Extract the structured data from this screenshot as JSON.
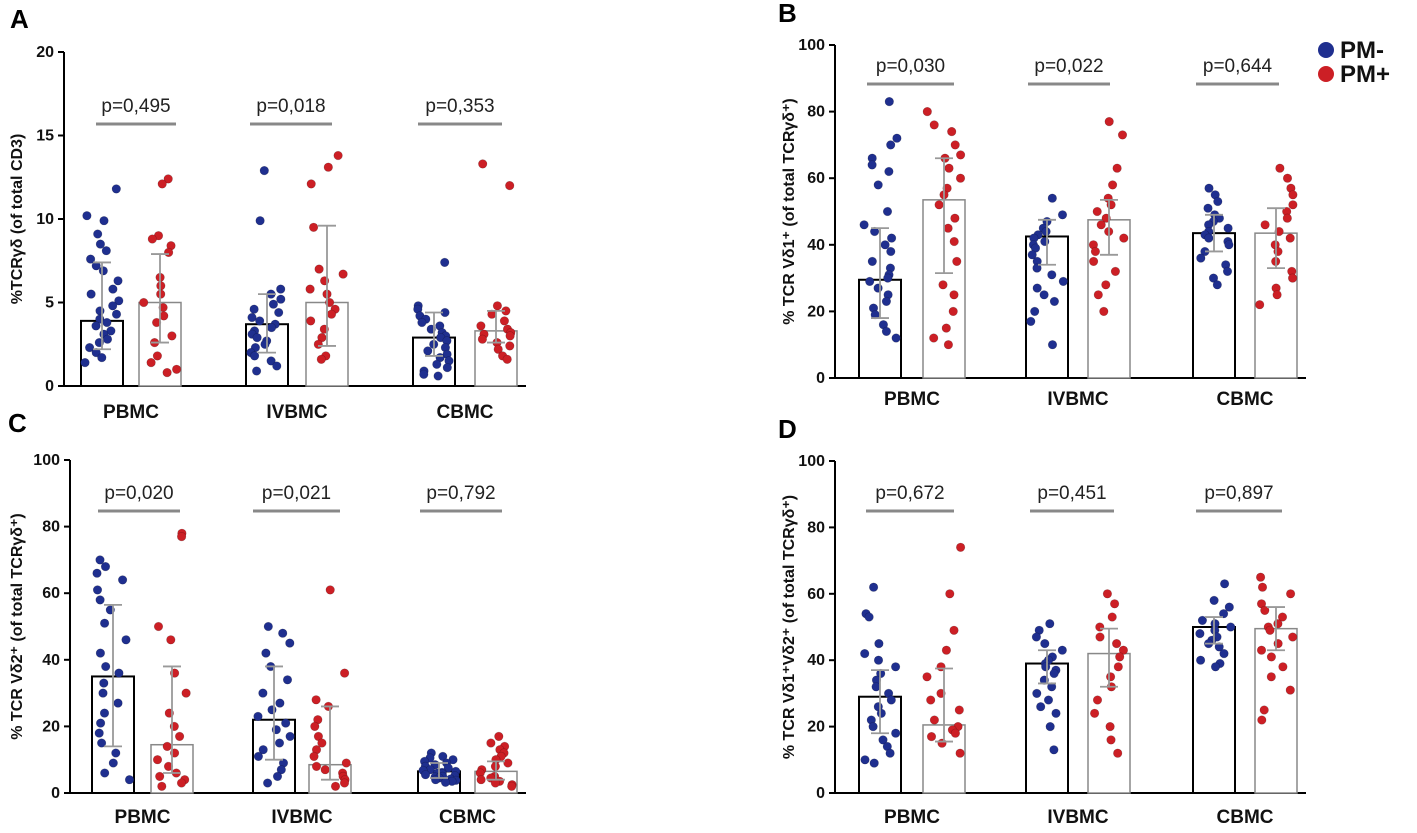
{
  "legend": {
    "items": [
      {
        "label": "PM-",
        "color": "#1f2f8f"
      },
      {
        "label": "PM+",
        "color": "#cc1f25"
      }
    ]
  },
  "colors": {
    "pm_minus": "#1f2f8f",
    "pm_plus": "#cc1f25"
  },
  "chart_data": [
    {
      "panel": "A",
      "type": "bar",
      "ylabel": "%TCRγδ (of total CD3)",
      "ylim": [
        0,
        20
      ],
      "yticks": [
        "0",
        "5",
        "10",
        "15",
        "20"
      ],
      "categories": [
        "PBMC",
        "IVBMC",
        "CBMC"
      ],
      "pvalues": [
        "p=0,495",
        "p=0,018",
        "p=0,353"
      ],
      "series": [
        {
          "name": "PM-",
          "values": [
            3.9,
            3.7,
            2.9
          ],
          "err_low": [
            2.2,
            2.0,
            1.8
          ],
          "err_high": [
            7.4,
            5.5,
            4.4
          ],
          "points": [
            [
              11.8,
              10.2,
              9.9,
              9.1,
              8.5,
              8.1,
              7.6,
              7.2,
              6.9,
              6.3,
              5.8,
              5.5,
              5.1,
              4.8,
              4.5,
              4.3,
              4.0,
              3.8,
              3.6,
              3.3,
              3.1,
              2.8,
              2.6,
              2.3,
              2.0,
              1.7,
              1.4
            ],
            [
              12.9,
              9.9,
              5.8,
              5.5,
              5.2,
              4.9,
              4.6,
              4.4,
              4.1,
              3.9,
              3.7,
              3.5,
              3.3,
              3.1,
              2.9,
              2.7,
              2.5,
              2.3,
              2.0,
              1.8,
              1.5,
              1.2,
              0.9
            ],
            [
              7.4,
              4.8,
              4.6,
              4.4,
              4.2,
              4.0,
              3.8,
              3.6,
              3.4,
              3.2,
              3.0,
              2.9,
              2.7,
              2.5,
              2.3,
              2.1,
              1.9,
              1.7,
              1.5,
              1.3,
              1.1,
              0.9,
              0.7,
              0.6
            ]
          ]
        },
        {
          "name": "PM+",
          "values": [
            5.0,
            5.0,
            3.3
          ],
          "err_low": [
            2.6,
            2.4,
            2.6
          ],
          "err_high": [
            7.9,
            9.6,
            4.5
          ],
          "points": [
            [
              12.4,
              12.1,
              9.0,
              8.8,
              8.4,
              8.0,
              6.5,
              6.0,
              5.5,
              5.0,
              4.7,
              4.2,
              3.8,
              3.0,
              2.6,
              1.8,
              1.4,
              1.0,
              0.8
            ],
            [
              13.8,
              13.1,
              12.1,
              9.5,
              7.0,
              6.7,
              6.3,
              5.8,
              5.5,
              5.0,
              4.6,
              4.3,
              3.9,
              3.4,
              2.9,
              2.5,
              1.8,
              1.6
            ],
            [
              13.3,
              12.0,
              4.8,
              4.5,
              4.3,
              3.9,
              3.6,
              3.4,
              3.2,
              3.1,
              3.0,
              2.8,
              2.6,
              2.4,
              2.2,
              1.8,
              1.6
            ]
          ]
        }
      ]
    },
    {
      "panel": "B",
      "type": "bar",
      "ylabel": "% TCR Vδ1⁺ (of total TCRγδ⁺)",
      "ylim": [
        0,
        100
      ],
      "yticks": [
        "0",
        "20",
        "40",
        "60",
        "80",
        "100"
      ],
      "categories": [
        "PBMC",
        "IVBMC",
        "CBMC"
      ],
      "pvalues": [
        "p=0,030",
        "p=0,022",
        "p=0,644"
      ],
      "series": [
        {
          "name": "PM-",
          "values": [
            29.5,
            42.5,
            43.5
          ],
          "err_low": [
            18.0,
            34.0,
            38.0
          ],
          "err_high": [
            45.0,
            47.5,
            49.0
          ],
          "points": [
            [
              83.0,
              72.0,
              70.0,
              66.0,
              64.0,
              62.0,
              58.0,
              50.0,
              46.0,
              44.0,
              42.0,
              40.0,
              38.0,
              35.0,
              33.0,
              31.0,
              30.0,
              29.0,
              27.0,
              25.0,
              23.0,
              21.0,
              19.0,
              16.0,
              14.0,
              12.0
            ],
            [
              54.0,
              49.0,
              47.0,
              45.0,
              44.0,
              43.0,
              42.0,
              41.0,
              40.0,
              39.0,
              37.0,
              35.0,
              33.0,
              31.0,
              29.0,
              27.0,
              25.0,
              23.0,
              20.0,
              17.0,
              10.0
            ],
            [
              57.0,
              55.0,
              53.0,
              51.0,
              49.0,
              48.0,
              47.0,
              46.0,
              45.0,
              44.0,
              43.0,
              42.0,
              41.0,
              40.0,
              38.0,
              36.0,
              34.0,
              32.0,
              30.0,
              28.0
            ]
          ]
        },
        {
          "name": "PM+",
          "values": [
            53.5,
            47.5,
            43.5
          ],
          "err_low": [
            31.5,
            37.0,
            33.0
          ],
          "err_high": [
            66.0,
            53.5,
            51.0
          ],
          "points": [
            [
              80.0,
              76.0,
              74.0,
              70.0,
              67.0,
              66.0,
              63.0,
              60.0,
              57.0,
              55.0,
              52.0,
              48.0,
              45.0,
              41.0,
              35.0,
              28.0,
              25.0,
              20.0,
              15.0,
              12.0,
              10.0
            ],
            [
              77.0,
              73.0,
              63.0,
              58.0,
              54.0,
              52.0,
              50.0,
              48.0,
              46.0,
              44.0,
              42.0,
              40.0,
              38.0,
              35.0,
              32.0,
              28.0,
              25.0,
              20.0
            ],
            [
              63.0,
              60.0,
              57.0,
              55.0,
              52.0,
              50.0,
              48.0,
              46.0,
              44.0,
              42.0,
              40.0,
              38.0,
              35.0,
              32.0,
              30.0,
              27.0,
              25.0,
              22.0
            ]
          ]
        }
      ]
    },
    {
      "panel": "C",
      "type": "bar",
      "ylabel": "% TCR Vδ2⁺ (of total TCRγδ⁺)",
      "ylim": [
        0,
        100
      ],
      "yticks": [
        "0",
        "20",
        "40",
        "60",
        "80",
        "100"
      ],
      "categories": [
        "PBMC",
        "IVBMC",
        "CBMC"
      ],
      "pvalues": [
        "p=0,020",
        "p=0,021",
        "p=0,792"
      ],
      "series": [
        {
          "name": "PM-",
          "values": [
            35.0,
            22.0,
            6.5
          ],
          "err_low": [
            14.0,
            10.0,
            4.5
          ],
          "err_high": [
            56.5,
            38.0,
            9.0
          ],
          "points": [
            [
              70.0,
              68.0,
              66.0,
              64.0,
              61.0,
              58.0,
              55.0,
              51.0,
              46.0,
              42.0,
              38.0,
              36.0,
              33.0,
              30.0,
              27.0,
              24.0,
              21.0,
              18.0,
              15.0,
              12.0,
              9.0,
              6.0,
              4.0
            ],
            [
              50.0,
              48.0,
              45.0,
              42.0,
              38.0,
              34.0,
              30.0,
              27.0,
              25.0,
              23.0,
              21.0,
              19.0,
              17.0,
              15.0,
              13.0,
              11.0,
              9.0,
              7.0,
              5.0,
              3.0
            ],
            [
              12.0,
              11.0,
              10.5,
              10.0,
              9.5,
              9.0,
              8.5,
              8.0,
              7.5,
              7.0,
              6.8,
              6.5,
              6.2,
              6.0,
              5.8,
              5.5,
              5.2,
              5.0,
              4.8,
              4.5,
              4.2,
              4.0,
              3.8,
              3.5,
              3.2
            ]
          ]
        },
        {
          "name": "PM+",
          "values": [
            14.5,
            8.5,
            6.5
          ],
          "err_low": [
            6.0,
            4.0,
            4.0
          ],
          "err_high": [
            38.0,
            26.0,
            9.5
          ],
          "points": [
            [
              78.0,
              77.0,
              50.0,
              46.0,
              36.0,
              30.0,
              24.0,
              20.0,
              17.0,
              14.0,
              12.0,
              10.0,
              8.0,
              6.0,
              5.0,
              4.0,
              3.0,
              2.0
            ],
            [
              61.0,
              36.0,
              28.0,
              26.0,
              22.0,
              20.0,
              17.0,
              15.0,
              13.0,
              11.0,
              9.0,
              8.0,
              7.0,
              6.0,
              5.0,
              4.0,
              3.0,
              2.0
            ],
            [
              17.0,
              15.0,
              14.0,
              13.0,
              12.0,
              11.0,
              10.0,
              9.0,
              8.0,
              7.0,
              6.0,
              5.0,
              4.5,
              4.0,
              3.5,
              3.0,
              2.5,
              2.0
            ]
          ]
        }
      ]
    },
    {
      "panel": "D",
      "type": "bar",
      "ylabel": "% TCR Vδ1⁺Vδ2⁺ (of total TCRγδ⁺)",
      "ylim": [
        0,
        100
      ],
      "yticks": [
        "0",
        "20",
        "40",
        "60",
        "80",
        "100"
      ],
      "categories": [
        "PBMC",
        "IVBMC",
        "CBMC"
      ],
      "pvalues": [
        "p=0,672",
        "p=0,451",
        "p=0,897"
      ],
      "series": [
        {
          "name": "PM-",
          "values": [
            29.0,
            39.0,
            50.0
          ],
          "err_low": [
            18.0,
            33.0,
            45.0
          ],
          "err_high": [
            37.0,
            43.0,
            53.0
          ],
          "points": [
            [
              62.0,
              54.0,
              53.0,
              45.0,
              42.0,
              40.0,
              38.0,
              36.0,
              34.0,
              32.0,
              30.0,
              28.0,
              26.0,
              24.0,
              22.0,
              20.0,
              18.0,
              16.0,
              14.0,
              12.0,
              10.0,
              9.0
            ],
            [
              51.0,
              49.0,
              47.0,
              45.0,
              43.0,
              41.0,
              40.0,
              39.0,
              38.0,
              37.0,
              36.0,
              34.0,
              32.0,
              30.0,
              28.0,
              26.0,
              24.0,
              20.0,
              13.0
            ],
            [
              63.0,
              58.0,
              56.0,
              54.0,
              52.0,
              51.0,
              50.0,
              49.0,
              48.0,
              47.0,
              46.0,
              45.0,
              44.0,
              42.0,
              40.0,
              39.0,
              38.0
            ]
          ]
        },
        {
          "name": "PM+",
          "values": [
            20.5,
            42.0,
            49.5
          ],
          "err_low": [
            15.5,
            32.0,
            43.0
          ],
          "err_high": [
            37.5,
            49.5,
            56.0
          ],
          "points": [
            [
              74.0,
              60.0,
              49.0,
              43.0,
              38.0,
              35.0,
              30.0,
              28.0,
              25.0,
              22.0,
              20.0,
              19.0,
              18.0,
              17.0,
              15.0,
              12.0
            ],
            [
              60.0,
              57.0,
              53.0,
              50.0,
              47.0,
              45.0,
              43.0,
              41.0,
              38.0,
              35.0,
              32.0,
              28.0,
              24.0,
              20.0,
              16.0,
              12.0
            ],
            [
              65.0,
              62.0,
              60.0,
              57.0,
              55.0,
              53.0,
              51.0,
              50.0,
              49.0,
              47.0,
              45.0,
              43.0,
              41.0,
              38.0,
              35.0,
              31.0,
              25.0,
              22.0
            ]
          ]
        }
      ]
    }
  ]
}
